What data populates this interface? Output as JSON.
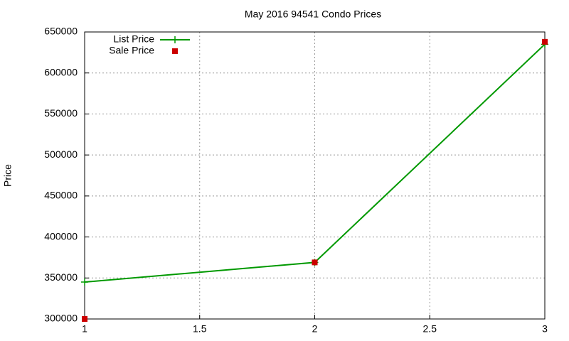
{
  "chart_data": {
    "type": "line",
    "title": "May 2016 94541 Condo Prices",
    "ylabel": "Price",
    "x": [
      1,
      2,
      3
    ],
    "series": [
      {
        "name": "List Price",
        "color": "#009900",
        "line": true,
        "marker": "plus",
        "values": [
          345000,
          369000,
          635000
        ]
      },
      {
        "name": "Sale Price",
        "color": "#cc0000",
        "line": false,
        "marker": "square",
        "values": [
          300000,
          369000,
          638000
        ]
      }
    ],
    "xlim": [
      1,
      3
    ],
    "xticks": [
      1,
      1.5,
      2,
      2.5,
      3
    ],
    "ylim": [
      300000,
      650000
    ],
    "yticks": [
      300000,
      350000,
      400000,
      450000,
      500000,
      550000,
      600000,
      650000
    ],
    "grid": true,
    "legend": "top-left"
  }
}
